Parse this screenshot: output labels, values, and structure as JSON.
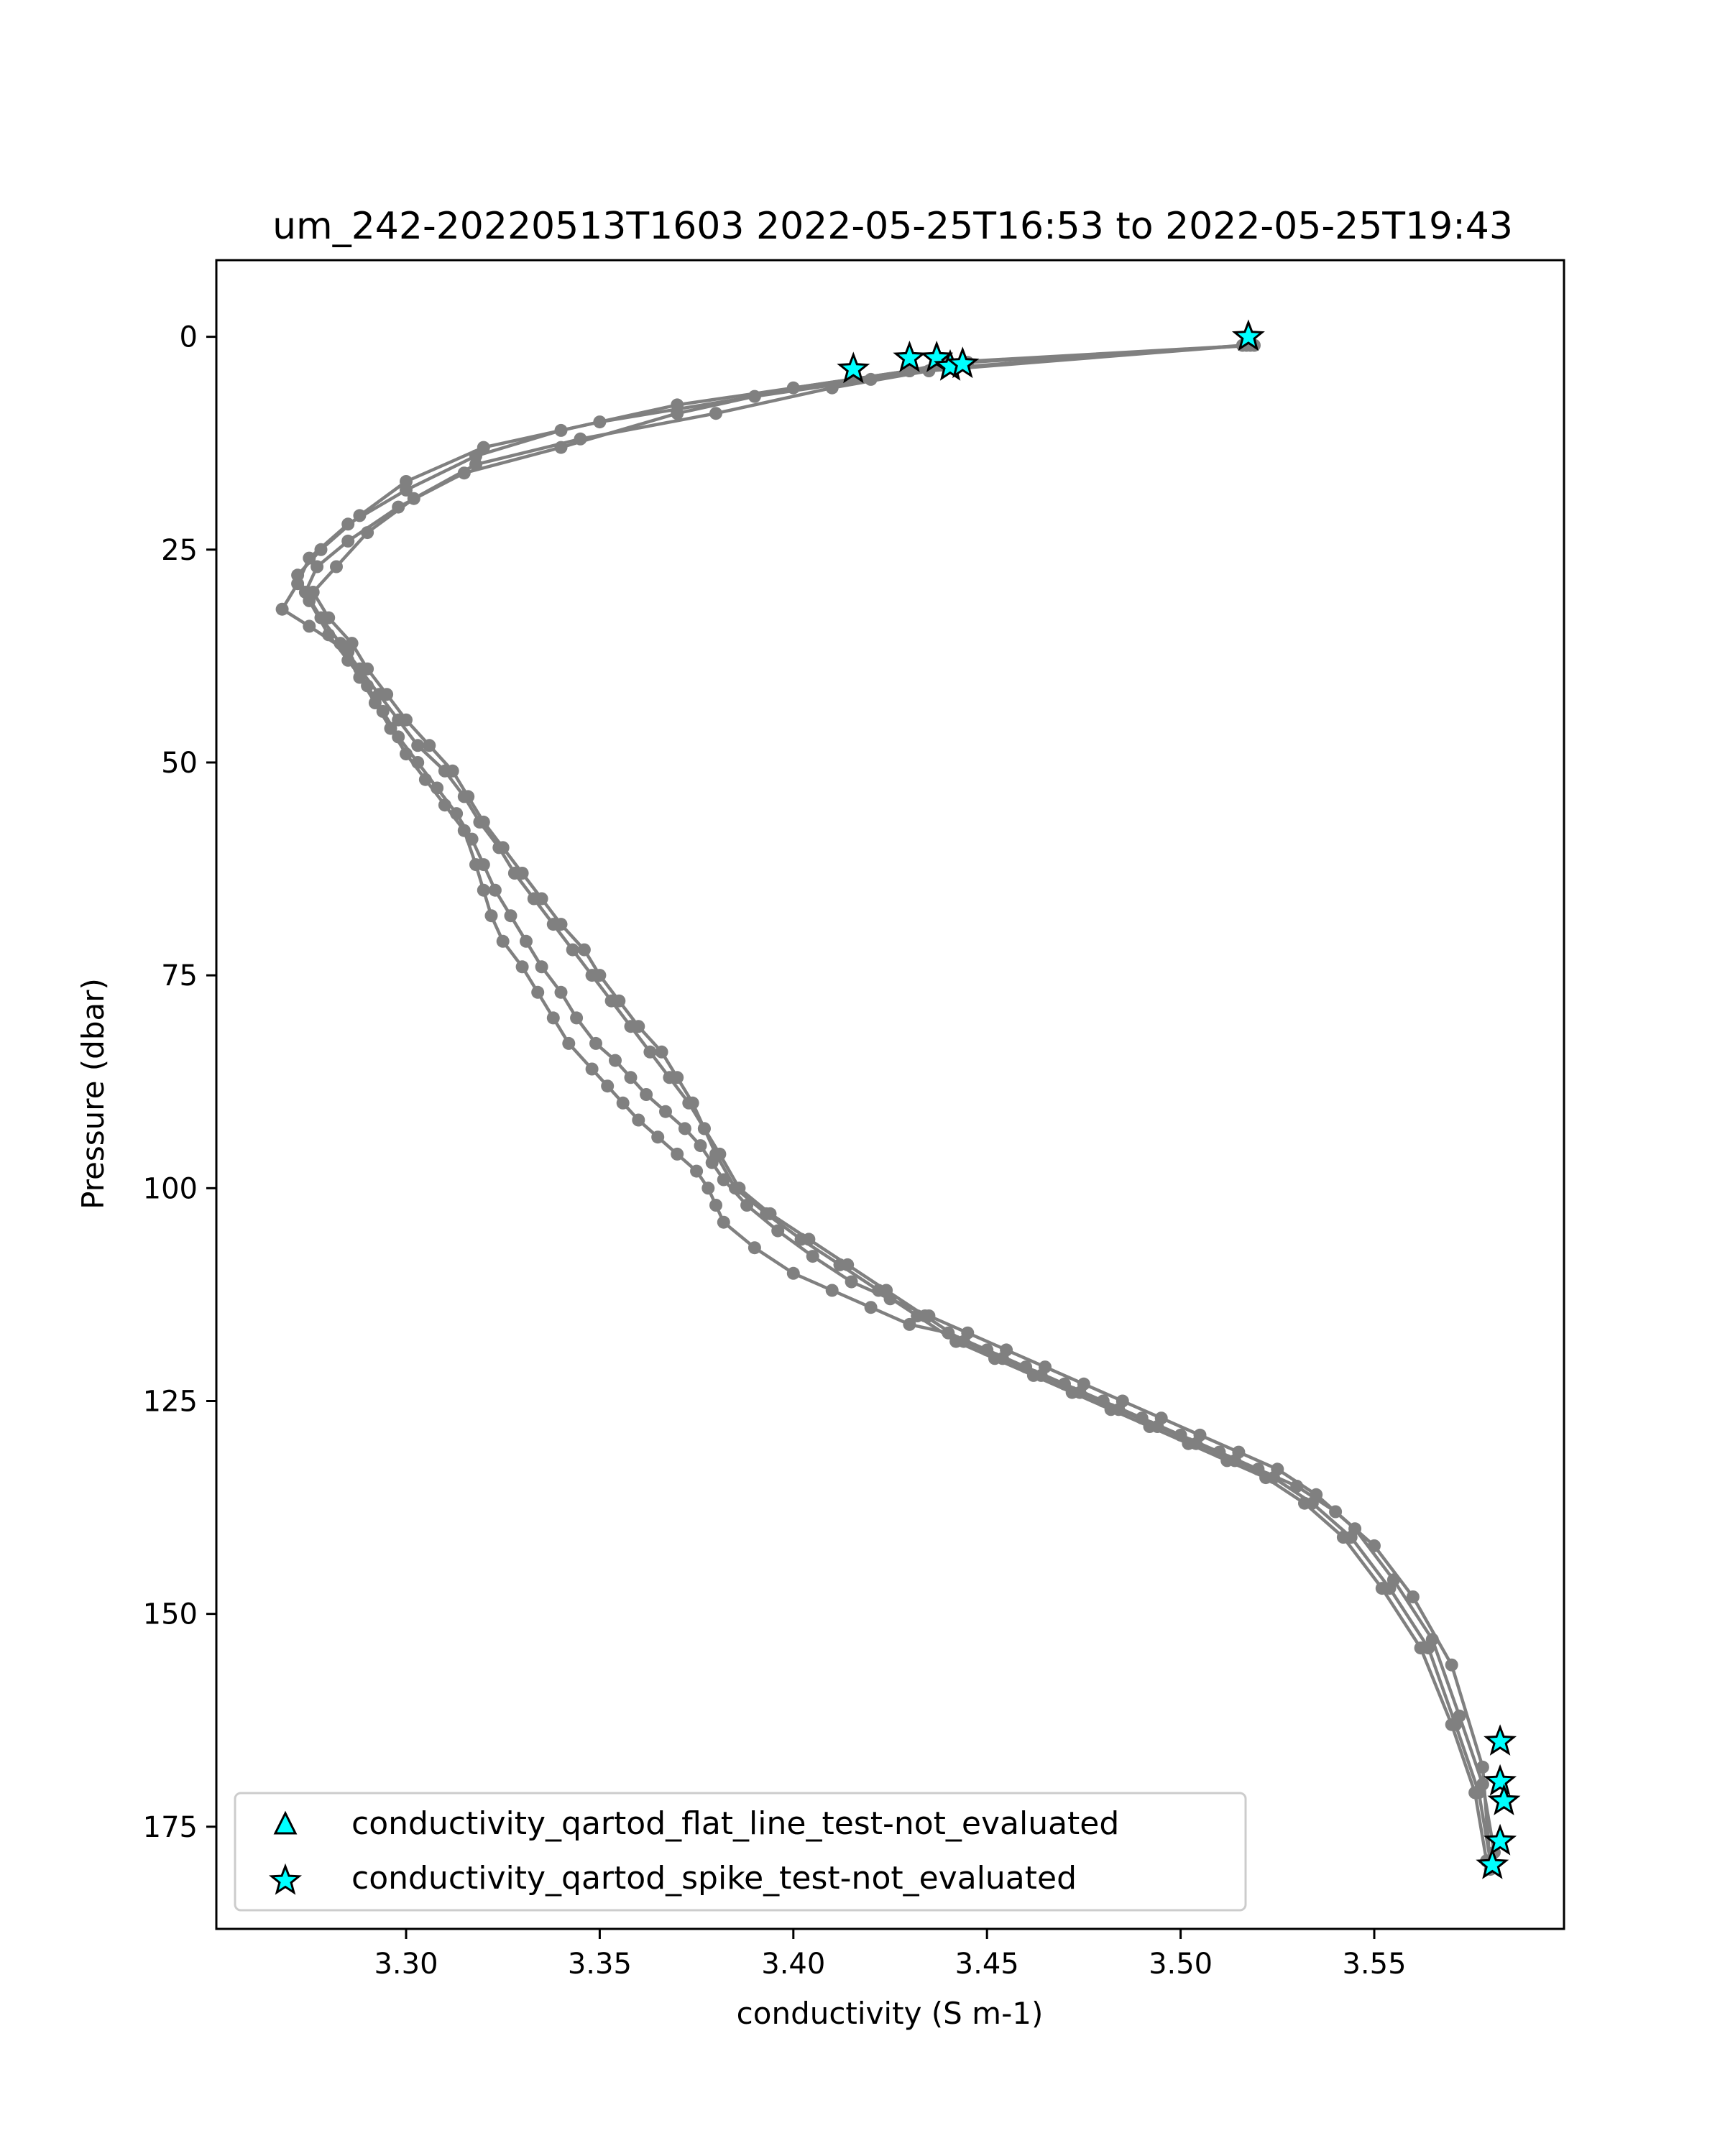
{
  "chart_data": {
    "type": "line",
    "title": "um_242-20220513T1603 2022-05-25T16:53 to 2022-05-25T19:43",
    "xlabel": "conductivity (S m-1)",
    "ylabel": "Pressure (dbar)",
    "xlim": [
      3.251,
      3.599
    ],
    "ylim": [
      187,
      -9
    ],
    "y_inverted": true,
    "grid": false,
    "legend_position": "lower-left",
    "xticks": [
      "3.30",
      "3.35",
      "3.40",
      "3.45",
      "3.50",
      "3.55"
    ],
    "xtick_values": [
      3.3,
      3.35,
      3.4,
      3.45,
      3.5,
      3.55
    ],
    "yticks": [
      "0",
      "25",
      "50",
      "75",
      "100",
      "125",
      "150",
      "175"
    ],
    "ytick_values": [
      0,
      25,
      50,
      75,
      100,
      125,
      150,
      175
    ],
    "line_color": "#808080",
    "marker_color": "#00ffff",
    "series": [
      {
        "x": [
          3.519,
          3.445,
          3.43,
          3.415,
          3.37,
          3.34,
          3.318,
          3.3,
          3.285,
          3.275,
          3.272,
          3.268,
          3.275,
          3.285,
          3.288,
          3.292,
          3.296,
          3.3,
          3.305,
          3.31,
          3.315,
          3.318,
          3.32,
          3.322,
          3.325,
          3.33,
          3.334,
          3.338,
          3.342,
          3.348,
          3.352,
          3.356,
          3.36,
          3.365,
          3.37,
          3.375,
          3.378,
          3.38,
          3.382,
          3.39,
          3.4,
          3.41,
          3.42,
          3.43,
          3.44,
          3.45,
          3.46,
          3.47,
          3.48,
          3.49,
          3.5,
          3.51,
          3.52,
          3.53,
          3.54,
          3.55,
          3.56,
          3.57,
          3.578,
          3.58
        ],
        "y": [
          1,
          3,
          4,
          5,
          8,
          11,
          14,
          18,
          22,
          26,
          29,
          32,
          34,
          37,
          40,
          43,
          46,
          49,
          52,
          55,
          58,
          62,
          65,
          68,
          71,
          74,
          77,
          80,
          83,
          86,
          88,
          90,
          92,
          94,
          96,
          98,
          100,
          102,
          104,
          107,
          110,
          112,
          114,
          116,
          117,
          119,
          121,
          123,
          125,
          127,
          129,
          131,
          133,
          135,
          138,
          142,
          148,
          156,
          168,
          180
        ]
      },
      {
        "x": [
          3.518,
          3.44,
          3.42,
          3.39,
          3.35,
          3.32,
          3.3,
          3.288,
          3.278,
          3.272,
          3.275,
          3.28,
          3.285,
          3.29,
          3.294,
          3.298,
          3.303,
          3.308,
          3.313,
          3.317,
          3.32,
          3.323,
          3.327,
          3.331,
          3.335,
          3.34,
          3.344,
          3.349,
          3.354,
          3.358,
          3.362,
          3.367,
          3.372,
          3.376,
          3.379,
          3.382,
          3.388,
          3.396,
          3.405,
          3.415,
          3.425,
          3.435,
          3.445,
          3.455,
          3.465,
          3.475,
          3.485,
          3.495,
          3.505,
          3.515,
          3.525,
          3.535,
          3.545,
          3.555,
          3.565,
          3.572,
          3.578,
          3.581
        ],
        "y": [
          1,
          3,
          5,
          7,
          10,
          13,
          17,
          21,
          25,
          28,
          31,
          35,
          38,
          41,
          44,
          47,
          50,
          53,
          56,
          59,
          62,
          65,
          68,
          71,
          74,
          77,
          80,
          83,
          85,
          87,
          89,
          91,
          93,
          95,
          97,
          99,
          102,
          105,
          108,
          111,
          113,
          115,
          117,
          119,
          121,
          123,
          125,
          127,
          129,
          131,
          133,
          136,
          140,
          146,
          153,
          162,
          170,
          178
        ]
      },
      {
        "x": [
          3.517,
          3.435,
          3.41,
          3.38,
          3.345,
          3.318,
          3.302,
          3.29,
          3.282,
          3.276,
          3.28,
          3.286,
          3.29,
          3.295,
          3.3,
          3.306,
          3.312,
          3.316,
          3.32,
          3.325,
          3.33,
          3.335,
          3.34,
          3.346,
          3.35,
          3.355,
          3.36,
          3.366,
          3.37,
          3.374,
          3.377,
          3.38,
          3.385,
          3.393,
          3.402,
          3.412,
          3.422,
          3.432,
          3.442,
          3.452,
          3.462,
          3.472,
          3.482,
          3.492,
          3.502,
          3.512,
          3.522,
          3.532,
          3.542,
          3.552,
          3.562,
          3.57,
          3.576,
          3.579
        ],
        "y": [
          1,
          4,
          6,
          9,
          12,
          15,
          19,
          23,
          27,
          30,
          33,
          36,
          39,
          42,
          45,
          48,
          51,
          54,
          57,
          60,
          63,
          66,
          69,
          72,
          75,
          78,
          81,
          84,
          87,
          90,
          93,
          96,
          100,
          103,
          106,
          109,
          112,
          115,
          118,
          120,
          122,
          124,
          126,
          128,
          130,
          132,
          134,
          137,
          141,
          147,
          154,
          163,
          171,
          179
        ]
      },
      {
        "x": [
          3.516,
          3.43,
          3.4,
          3.37,
          3.34,
          3.315,
          3.298,
          3.285,
          3.277,
          3.274,
          3.278,
          3.283,
          3.288,
          3.293,
          3.298,
          3.303,
          3.31,
          3.315,
          3.319,
          3.324,
          3.328,
          3.333,
          3.338,
          3.343,
          3.348,
          3.353,
          3.358,
          3.363,
          3.368,
          3.373,
          3.377,
          3.381,
          3.386,
          3.394,
          3.404,
          3.414,
          3.424,
          3.434,
          3.444,
          3.454,
          3.464,
          3.474,
          3.484,
          3.494,
          3.504,
          3.514,
          3.524,
          3.534,
          3.544,
          3.554,
          3.564,
          3.571,
          3.577,
          3.58
        ],
        "y": [
          1,
          4,
          6,
          9,
          13,
          16,
          20,
          24,
          27,
          30,
          33,
          36,
          39,
          42,
          45,
          48,
          51,
          54,
          57,
          60,
          63,
          66,
          69,
          72,
          75,
          78,
          81,
          84,
          87,
          90,
          93,
          96,
          100,
          103,
          106,
          109,
          112,
          115,
          118,
          120,
          122,
          124,
          126,
          128,
          130,
          132,
          134,
          137,
          141,
          147,
          154,
          163,
          171,
          179
        ]
      }
    ],
    "flags": [
      {
        "x": 3.5175,
        "y": 0.0
      },
      {
        "x": 3.4155,
        "y": 3.8
      },
      {
        "x": 3.43,
        "y": 2.5
      },
      {
        "x": 3.437,
        "y": 2.5
      },
      {
        "x": 3.4405,
        "y": 3.5
      },
      {
        "x": 3.4437,
        "y": 3.2
      },
      {
        "x": 3.5825,
        "y": 165.0
      },
      {
        "x": 3.5825,
        "y": 169.7
      },
      {
        "x": 3.5835,
        "y": 172.0
      },
      {
        "x": 3.5825,
        "y": 176.7
      },
      {
        "x": 3.5805,
        "y": 179.5
      }
    ],
    "legend": [
      {
        "label": "conductivity_qartod_flat_line_test-not_evaluated",
        "marker": "triangle"
      },
      {
        "label": "conductivity_qartod_spike_test-not_evaluated",
        "marker": "star"
      }
    ]
  }
}
